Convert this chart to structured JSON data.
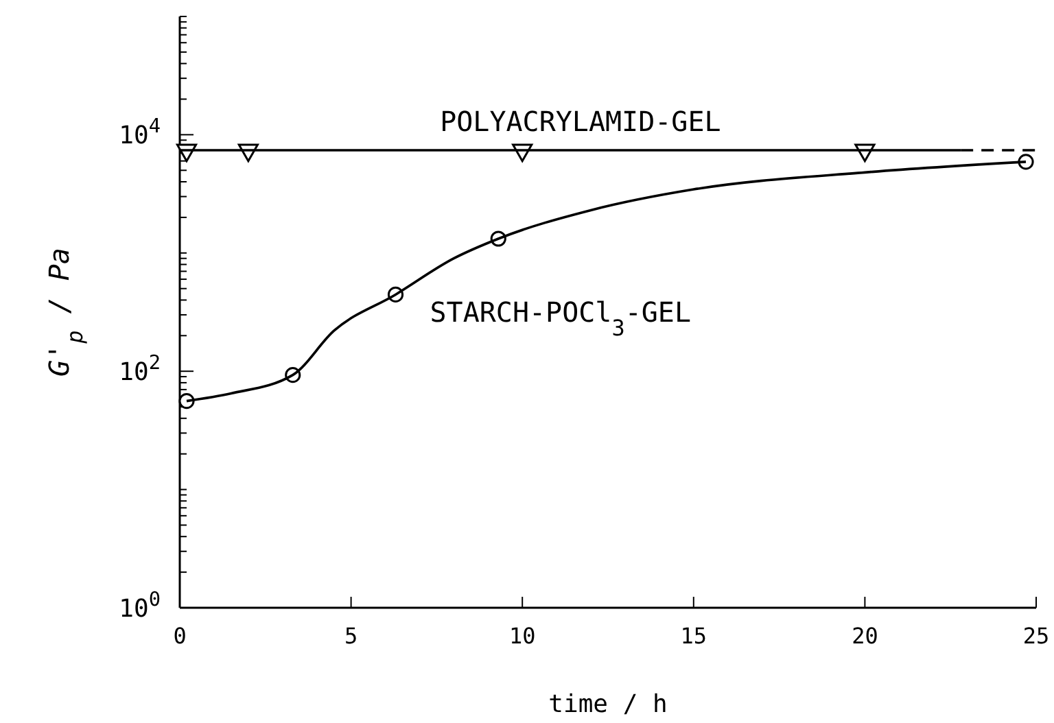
{
  "chart_data": {
    "type": "line",
    "xlabel": "time / h",
    "ylabel": "G'$_{p}$ / Pa",
    "log": "y",
    "grid": false,
    "legend": false,
    "xlim": [
      0,
      25
    ],
    "xticks": [
      0,
      5,
      10,
      15,
      20,
      25
    ],
    "ylim": [
      1,
      100000
    ],
    "yticks": [
      {
        "value": 1,
        "label": "10$^{0}$"
      },
      {
        "value": 2,
        "label": null
      },
      {
        "value": 3,
        "label": null
      },
      {
        "value": 4,
        "label": null
      },
      {
        "value": 5,
        "label": null
      },
      {
        "value": 6,
        "label": null
      },
      {
        "value": 7,
        "label": null
      },
      {
        "value": 8,
        "label": null
      },
      {
        "value": 9,
        "label": null
      },
      {
        "value": 10,
        "label": null
      },
      {
        "value": 20,
        "label": null
      },
      {
        "value": 30,
        "label": null
      },
      {
        "value": 40,
        "label": null
      },
      {
        "value": 50,
        "label": null
      },
      {
        "value": 60,
        "label": null
      },
      {
        "value": 70,
        "label": null
      },
      {
        "value": 80,
        "label": null
      },
      {
        "value": 90,
        "label": null
      },
      {
        "value": 100,
        "label": "10$^{2}$"
      },
      {
        "value": 200,
        "label": null
      },
      {
        "value": 300,
        "label": null
      },
      {
        "value": 400,
        "label": null
      },
      {
        "value": 500,
        "label": null
      },
      {
        "value": 600,
        "label": null
      },
      {
        "value": 700,
        "label": null
      },
      {
        "value": 800,
        "label": null
      },
      {
        "value": 900,
        "label": null
      },
      {
        "value": 1000,
        "label": null
      },
      {
        "value": 2000,
        "label": null
      },
      {
        "value": 3000,
        "label": null
      },
      {
        "value": 4000,
        "label": null
      },
      {
        "value": 5000,
        "label": null
      },
      {
        "value": 6000,
        "label": null
      },
      {
        "value": 7000,
        "label": null
      },
      {
        "value": 8000,
        "label": null
      },
      {
        "value": 9000,
        "label": null
      },
      {
        "value": 10000,
        "label": "10$^{4}$"
      },
      {
        "value": 20000,
        "label": null
      },
      {
        "value": 30000,
        "label": null
      },
      {
        "value": 40000,
        "label": null
      },
      {
        "value": 50000,
        "label": null
      },
      {
        "value": 60000,
        "label": null
      },
      {
        "value": 70000,
        "label": null
      },
      {
        "value": 80000,
        "label": null
      },
      {
        "value": 90000,
        "label": null
      },
      {
        "value": 100000,
        "label": null
      }
    ],
    "series": [
      {
        "name": "POLYACRYLAMID-GEL",
        "type": "scatter",
        "marker": "triangle",
        "color": "#000000",
        "x": [
          0.2,
          2,
          10,
          20
        ],
        "values": [
          7400,
          7400,
          7400,
          7400
        ]
      },
      {
        "type": "line",
        "marker": "none",
        "line_style": "solid",
        "color": "#000000",
        "x": [
          0,
          22.8
        ],
        "values": [
          7400,
          7400
        ]
      },
      {
        "type": "line",
        "marker": "none",
        "line_style": "dashed",
        "color": "#000000",
        "x": [
          22.8,
          25
        ],
        "values": [
          7400,
          7400
        ]
      },
      {
        "name": "STARCH-POCl$_{3}$-GEL",
        "type": "scatter",
        "marker": "circle",
        "color": "#000000",
        "x": [
          0.2,
          3.3,
          6.3,
          9.3,
          24.7
        ],
        "values": [
          56,
          93,
          445,
          1320,
          5900
        ]
      },
      {
        "type": "line",
        "marker": "none",
        "line_style": "solid",
        "color": "#000000",
        "x": [
          0.2,
          1.5,
          3.3,
          4.5,
          6.3,
          8,
          9.3,
          12,
          15,
          20,
          24.7
        ],
        "values": [
          56,
          65,
          93,
          220,
          445,
          900,
          1320,
          2300,
          3450,
          4800,
          5900
        ]
      }
    ]
  }
}
